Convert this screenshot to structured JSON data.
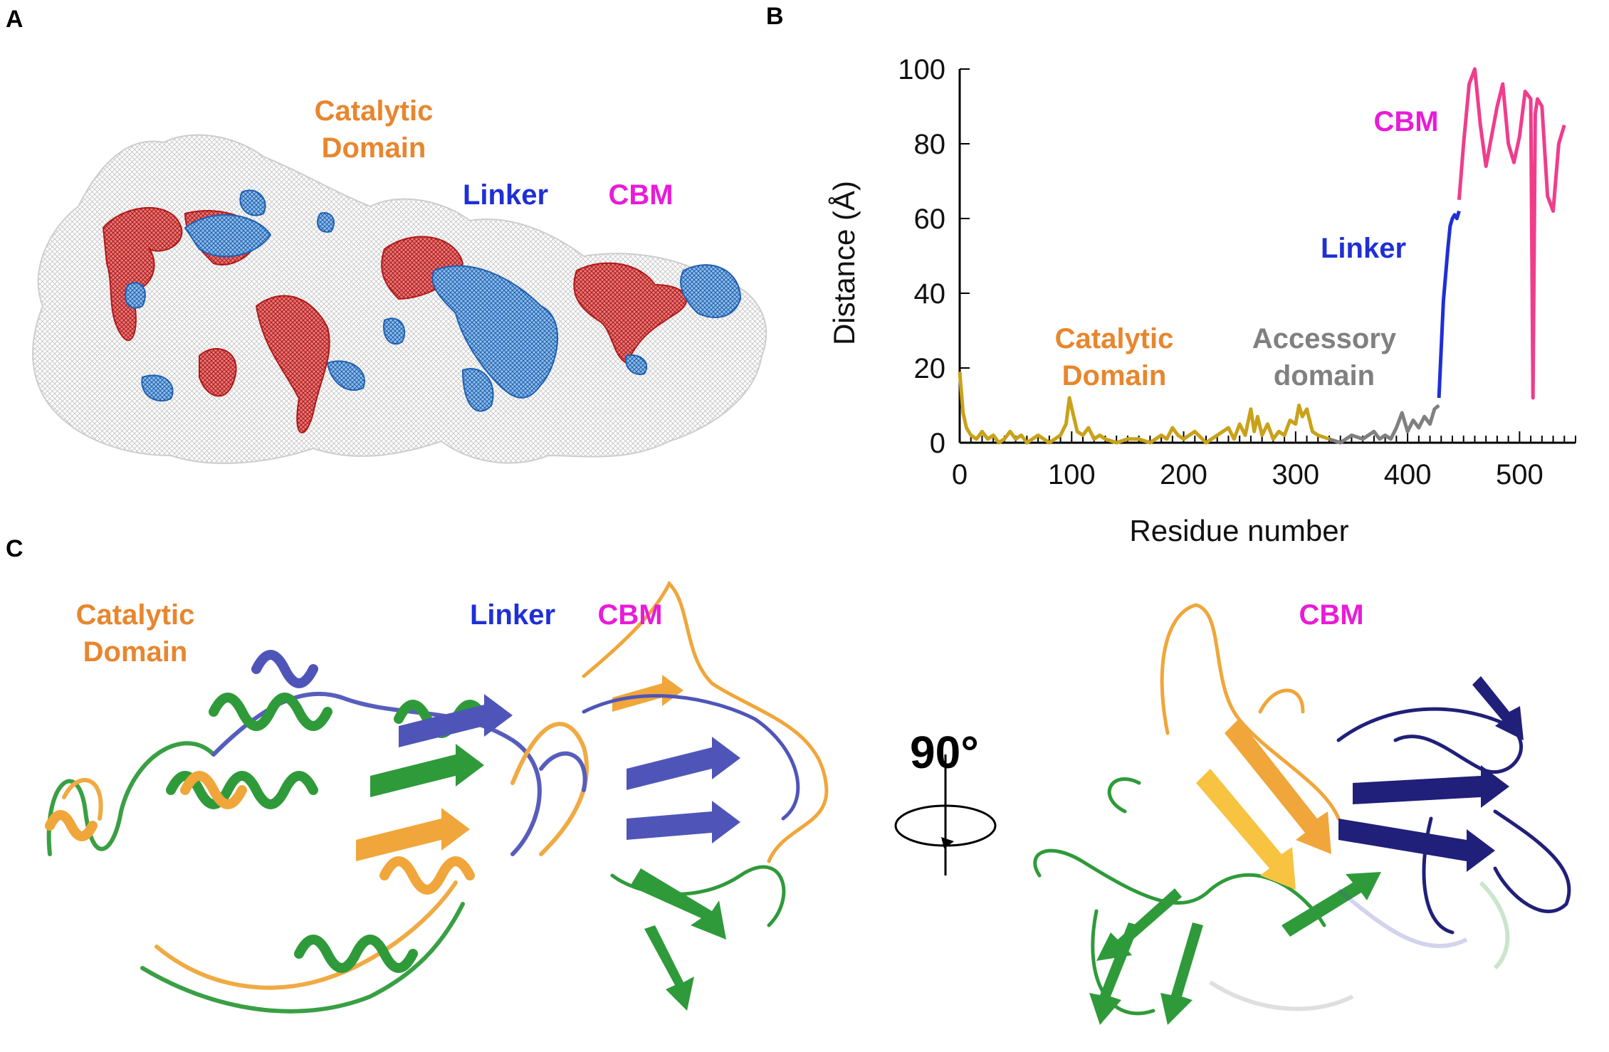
{
  "panels": {
    "a": "A",
    "b": "B",
    "c": "C"
  },
  "panel_a": {
    "labels": {
      "catalytic": "Catalytic\nDomain",
      "linker": "Linker",
      "cbm": "CBM"
    }
  },
  "panel_c": {
    "labels": {
      "catalytic": "Catalytic\nDomain",
      "linker": "Linker",
      "cbm_left": "CBM",
      "cbm_right": "CBM"
    },
    "rotation": "90°"
  },
  "colors": {
    "catalytic": "#e8862e",
    "linker": "#1f2fd6",
    "cbm": "#e81cd8",
    "accessory": "#808080",
    "line_catalytic": "#c9a21a",
    "line_linker": "#1f2fd6",
    "line_cbm": "#ef3d8c",
    "mesh_red": "#d42a2a",
    "mesh_blue": "#2f7fd0",
    "ribbon_orange": "#f0a63a",
    "ribbon_green": "#2f9a3a",
    "ribbon_blue": "#4f55b8"
  },
  "chart_data": {
    "type": "line",
    "xlabel": "Residue number",
    "ylabel": "Distance (Å)",
    "xlim": [
      0,
      550
    ],
    "ylim": [
      0,
      100
    ],
    "xticks": [
      0,
      100,
      200,
      300,
      400,
      500
    ],
    "yticks": [
      0,
      20,
      40,
      60,
      80,
      100
    ],
    "annotations": [
      {
        "text": "CBM",
        "color": "#e81cd8"
      },
      {
        "text": "Linker",
        "color": "#1f2fd6"
      },
      {
        "text": "Catalytic\nDomain",
        "color": "#e8862e"
      },
      {
        "text": "Accessory\ndomain",
        "color": "#808080"
      }
    ],
    "series": [
      {
        "color": "#c9a21a",
        "x": [
          0,
          3,
          6,
          10,
          15,
          20,
          25,
          30,
          35,
          40,
          45,
          50,
          55,
          60,
          65,
          70,
          75,
          80,
          85,
          90,
          95,
          98,
          101,
          105,
          110,
          115,
          120,
          125,
          130,
          140,
          150,
          160,
          170,
          180,
          185,
          190,
          195,
          200,
          210,
          220,
          230,
          240,
          245,
          250,
          255,
          260,
          263,
          266,
          270,
          275,
          280,
          285,
          290,
          295,
          300,
          303,
          306,
          310,
          315,
          320,
          330
        ],
        "y": [
          19,
          8,
          4,
          2,
          1,
          3,
          1,
          2,
          0,
          1,
          3,
          1,
          2,
          0,
          1,
          2,
          1,
          0,
          1,
          2,
          5,
          12,
          8,
          3,
          2,
          4,
          1,
          2,
          1,
          0,
          1,
          1,
          0,
          2,
          1,
          4,
          2,
          1,
          3,
          0,
          2,
          4,
          1,
          5,
          2,
          9,
          3,
          7,
          2,
          5,
          1,
          3,
          2,
          6,
          5,
          10,
          7,
          9,
          3,
          2,
          1
        ]
      },
      {
        "color": "#808080",
        "x": [
          330,
          340,
          350,
          360,
          370,
          375,
          380,
          385,
          390,
          395,
          400,
          405,
          410,
          415,
          420,
          424,
          428
        ],
        "y": [
          1,
          0,
          2,
          1,
          3,
          1,
          2,
          1,
          4,
          8,
          3,
          6,
          4,
          7,
          5,
          9,
          10
        ]
      },
      {
        "color": "#1f2fd6",
        "x": [
          428,
          430,
          432,
          434,
          436,
          438,
          440,
          442,
          444,
          446
        ],
        "y": [
          12,
          25,
          38,
          45,
          52,
          58,
          60,
          61,
          60,
          62
        ]
      },
      {
        "color": "#ef3d8c",
        "x": [
          446,
          450,
          455,
          460,
          465,
          470,
          475,
          480,
          485,
          490,
          495,
          500,
          505,
          510,
          512,
          514,
          516,
          520,
          525,
          530,
          535,
          540
        ],
        "y": [
          65,
          80,
          96,
          100,
          85,
          74,
          82,
          90,
          96,
          80,
          75,
          82,
          94,
          92,
          12,
          88,
          92,
          90,
          66,
          62,
          80,
          85
        ]
      }
    ]
  }
}
